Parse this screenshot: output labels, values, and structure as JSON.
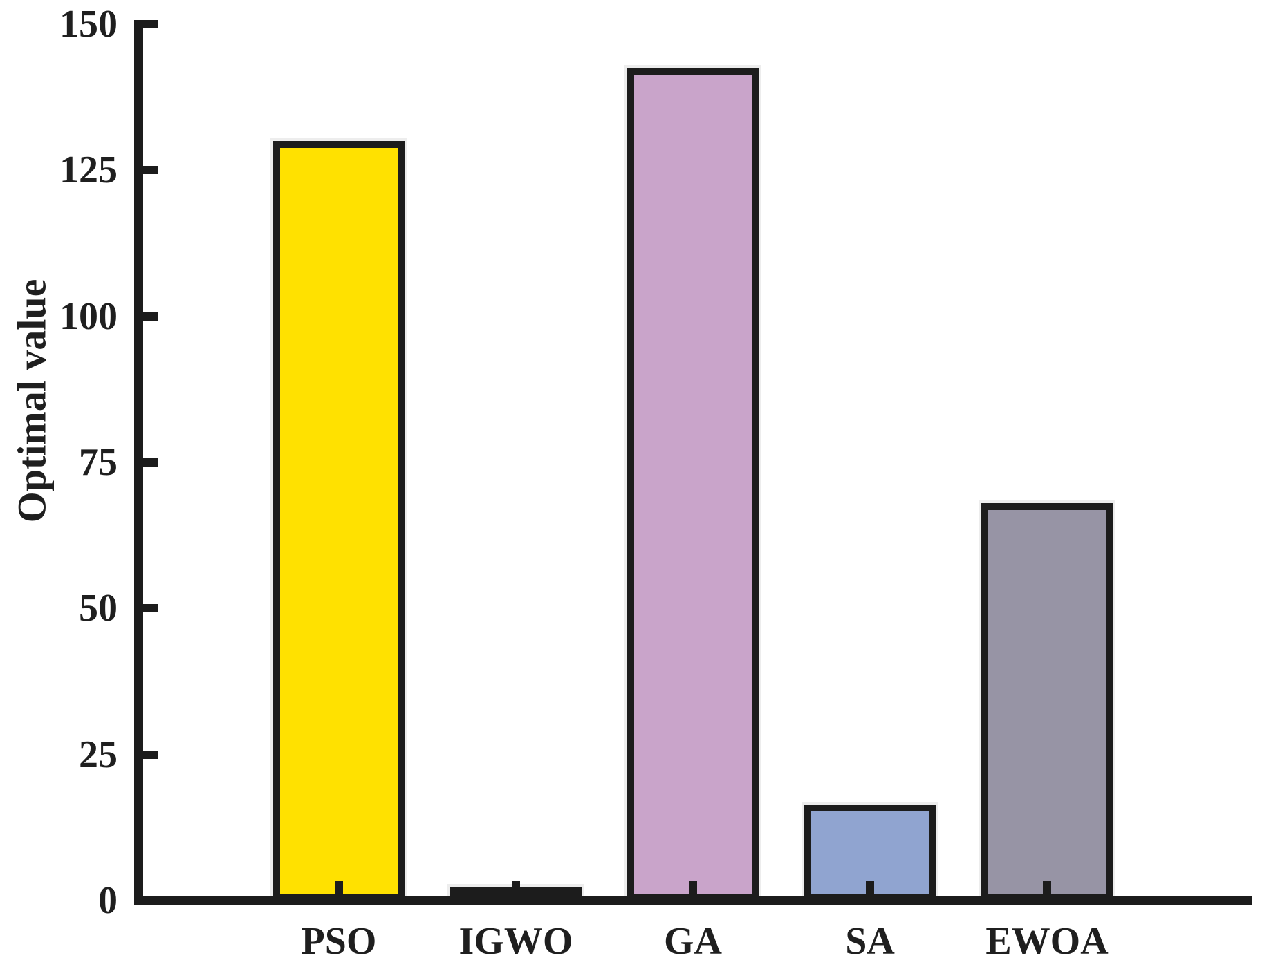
{
  "chart_data": {
    "type": "bar",
    "title": "",
    "xlabel": "",
    "ylabel": "Optimal value",
    "categories": [
      "PSO",
      "IGWO",
      "GA",
      "SA",
      "EWOA"
    ],
    "values": [
      130,
      1,
      142.5,
      16.5,
      68
    ],
    "bar_colors": [
      "#FFE100",
      "#1C1C1C",
      "#C9A4CA",
      "#90A4D0",
      "#9794A5"
    ],
    "bar_edge_color": "#1C1C1C",
    "axis_color": "#1C1C1C",
    "text_color": "#1F1F1F",
    "background_color": "#FFFFFF",
    "ylim": [
      0,
      150
    ],
    "yticks": [
      0,
      25,
      50,
      75,
      100,
      125,
      150
    ],
    "grid": false,
    "legend": null,
    "tick_direction": "in"
  }
}
